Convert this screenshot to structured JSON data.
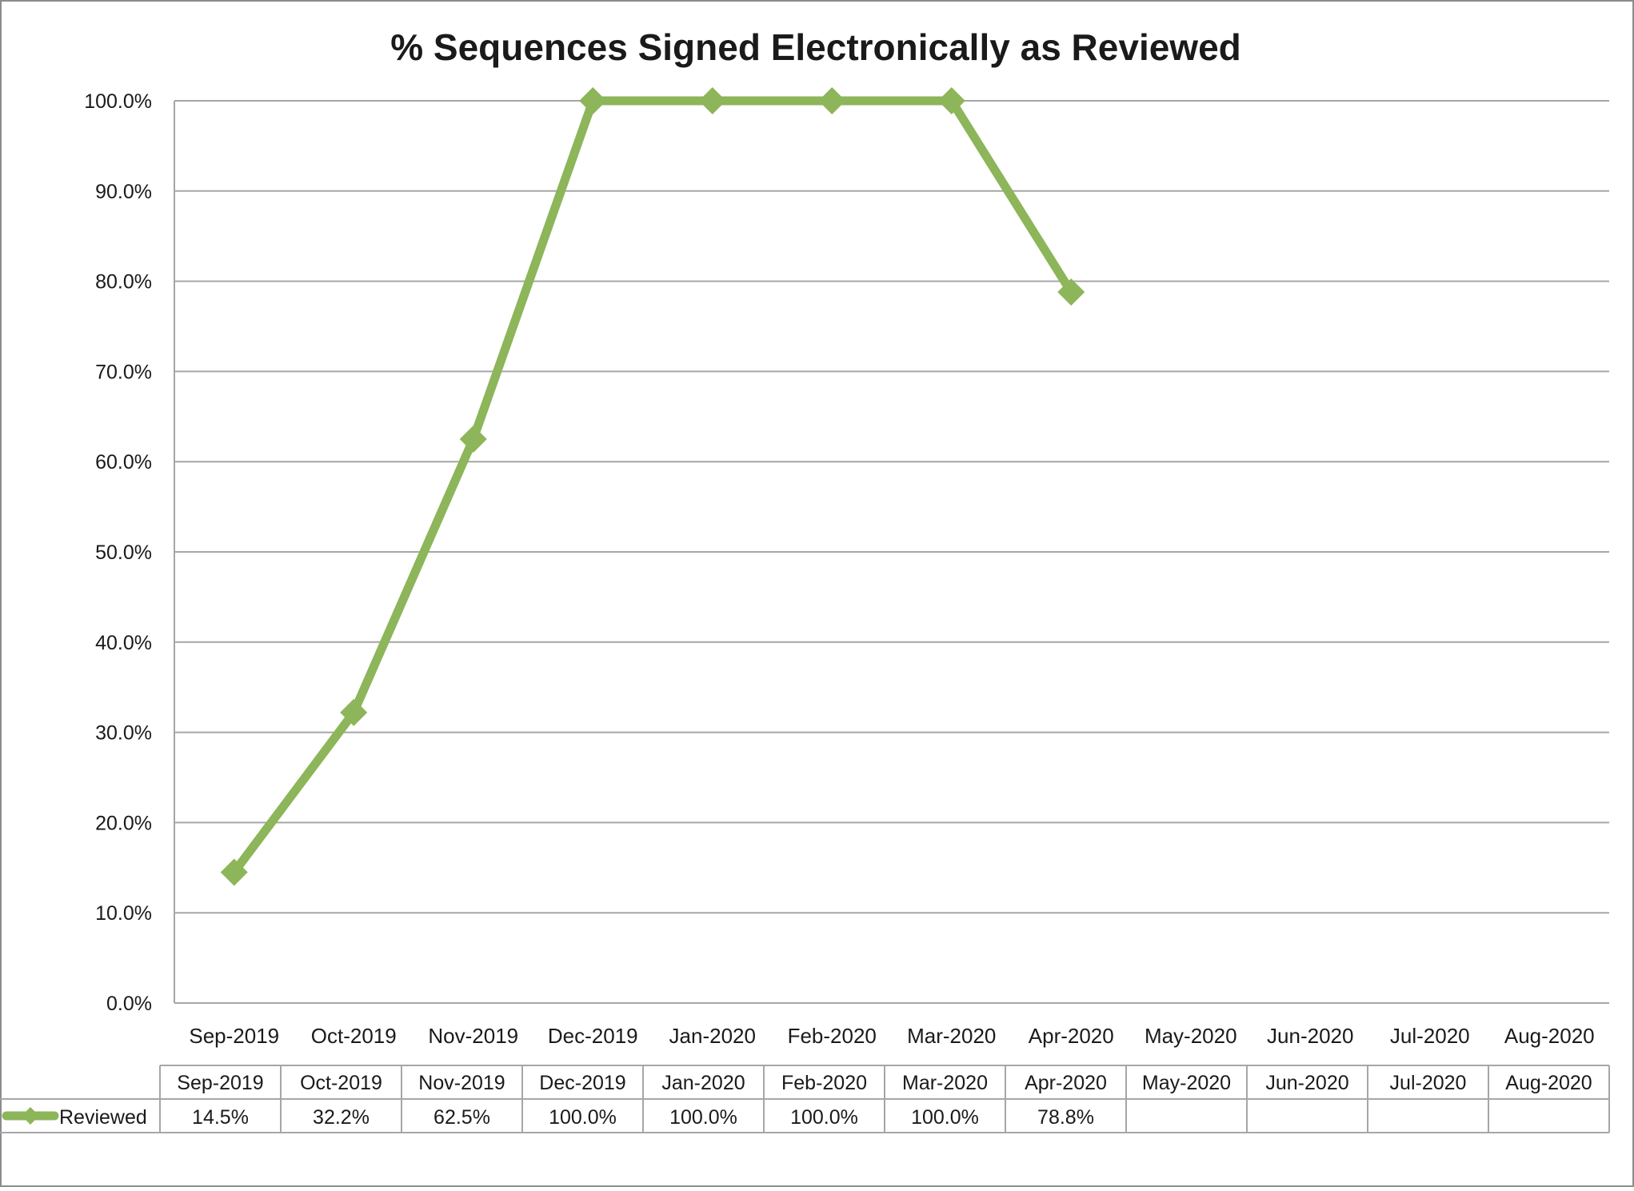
{
  "chart_data": {
    "type": "line",
    "title": "% Sequences Signed Electronically as Reviewed",
    "xlabel": "",
    "ylabel": "",
    "categories": [
      "Sep-2019",
      "Oct-2019",
      "Nov-2019",
      "Dec-2019",
      "Jan-2020",
      "Feb-2020",
      "Mar-2020",
      "Apr-2020",
      "May-2020",
      "Jun-2020",
      "Jul-2020",
      "Aug-2020"
    ],
    "series": [
      {
        "name": "Reviewed",
        "values": [
          14.5,
          32.2,
          62.5,
          100.0,
          100.0,
          100.0,
          100.0,
          78.8,
          null,
          null,
          null,
          null
        ],
        "labels": [
          "14.5%",
          "32.2%",
          "62.5%",
          "100.0%",
          "100.0%",
          "100.0%",
          "100.0%",
          "78.8%",
          "",
          "",
          "",
          ""
        ],
        "color": "#8db559",
        "marker": "diamond"
      }
    ],
    "ylim": [
      0,
      100
    ],
    "yticks": [
      "0.0%",
      "10.0%",
      "20.0%",
      "30.0%",
      "40.0%",
      "50.0%",
      "60.0%",
      "70.0%",
      "80.0%",
      "90.0%",
      "100.0%"
    ],
    "grid": true,
    "legend": "data-table",
    "data_table": true,
    "colors": {
      "grid": "#a6a6a6",
      "border": "#8c8c8c",
      "series": "#8db559"
    }
  }
}
